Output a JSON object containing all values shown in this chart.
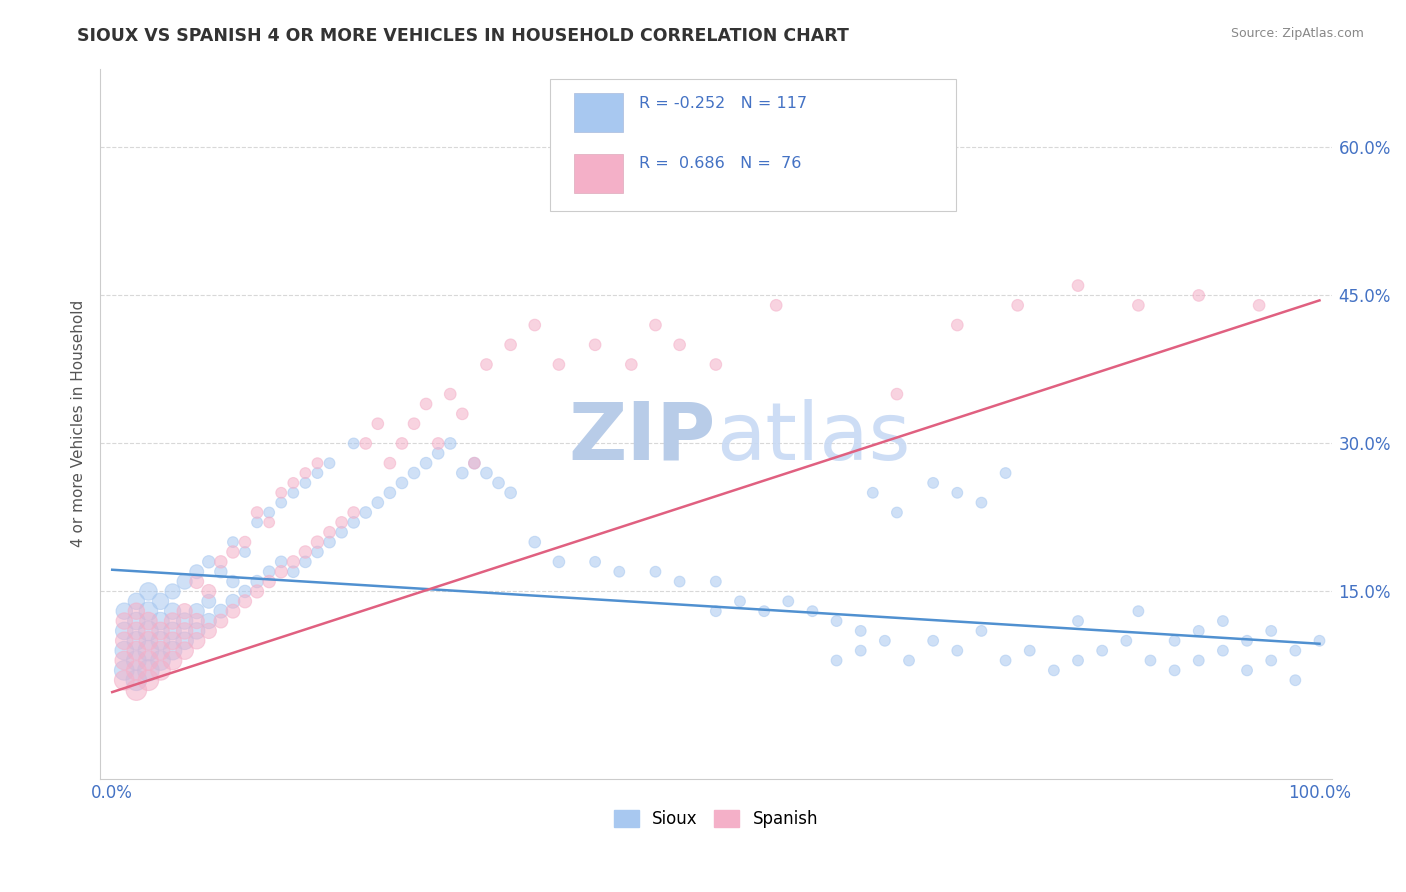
{
  "title": "SIOUX VS SPANISH 4 OR MORE VEHICLES IN HOUSEHOLD CORRELATION CHART",
  "source": "Source: ZipAtlas.com",
  "ylabel": "4 or more Vehicles in Household",
  "ytick_labels": [
    "15.0%",
    "30.0%",
    "45.0%",
    "60.0%"
  ],
  "ytick_values": [
    0.15,
    0.3,
    0.45,
    0.6
  ],
  "xlim": [
    -0.01,
    1.01
  ],
  "ylim": [
    -0.04,
    0.68
  ],
  "legend_bottom_label1": "Sioux",
  "legend_bottom_label2": "Spanish",
  "blue_color": "#a8c8f0",
  "pink_color": "#f4b0c8",
  "blue_line_color": "#5090d0",
  "pink_line_color": "#e06080",
  "watermark_zip": "ZIP",
  "watermark_atlas": "atlas",
  "watermark_color": "#b8cce8",
  "background_color": "#ffffff",
  "grid_color": "#d8d8d8",
  "title_color": "#333333",
  "axis_label_color": "#4472c4",
  "sioux_x": [
    0.01,
    0.01,
    0.01,
    0.01,
    0.02,
    0.02,
    0.02,
    0.02,
    0.02,
    0.03,
    0.03,
    0.03,
    0.03,
    0.03,
    0.04,
    0.04,
    0.04,
    0.04,
    0.05,
    0.05,
    0.05,
    0.05,
    0.06,
    0.06,
    0.06,
    0.07,
    0.07,
    0.07,
    0.08,
    0.08,
    0.08,
    0.09,
    0.09,
    0.1,
    0.1,
    0.1,
    0.11,
    0.11,
    0.12,
    0.12,
    0.13,
    0.13,
    0.14,
    0.14,
    0.15,
    0.15,
    0.16,
    0.16,
    0.17,
    0.17,
    0.18,
    0.18,
    0.19,
    0.2,
    0.2,
    0.21,
    0.22,
    0.23,
    0.24,
    0.25,
    0.26,
    0.27,
    0.28,
    0.29,
    0.3,
    0.31,
    0.32,
    0.33,
    0.35,
    0.37,
    0.4,
    0.42,
    0.45,
    0.47,
    0.5,
    0.5,
    0.52,
    0.54,
    0.56,
    0.58,
    0.6,
    0.62,
    0.64,
    0.66,
    0.68,
    0.7,
    0.72,
    0.74,
    0.76,
    0.78,
    0.8,
    0.82,
    0.84,
    0.86,
    0.88,
    0.9,
    0.92,
    0.94,
    0.96,
    0.98,
    0.6,
    0.62,
    0.63,
    0.65,
    0.68,
    0.7,
    0.72,
    0.74,
    0.8,
    0.85,
    0.88,
    0.9,
    0.92,
    0.94,
    0.96,
    0.98,
    1.0
  ],
  "sioux_y": [
    0.07,
    0.09,
    0.11,
    0.13,
    0.06,
    0.08,
    0.1,
    0.12,
    0.14,
    0.07,
    0.09,
    0.11,
    0.13,
    0.15,
    0.08,
    0.1,
    0.12,
    0.14,
    0.09,
    0.11,
    0.13,
    0.15,
    0.1,
    0.12,
    0.16,
    0.11,
    0.13,
    0.17,
    0.12,
    0.14,
    0.18,
    0.13,
    0.17,
    0.14,
    0.16,
    0.2,
    0.15,
    0.19,
    0.16,
    0.22,
    0.17,
    0.23,
    0.18,
    0.24,
    0.17,
    0.25,
    0.18,
    0.26,
    0.19,
    0.27,
    0.2,
    0.28,
    0.21,
    0.22,
    0.3,
    0.23,
    0.24,
    0.25,
    0.26,
    0.27,
    0.28,
    0.29,
    0.3,
    0.27,
    0.28,
    0.27,
    0.26,
    0.25,
    0.2,
    0.18,
    0.18,
    0.17,
    0.17,
    0.16,
    0.13,
    0.16,
    0.14,
    0.13,
    0.14,
    0.13,
    0.08,
    0.09,
    0.1,
    0.08,
    0.1,
    0.09,
    0.11,
    0.08,
    0.09,
    0.07,
    0.08,
    0.09,
    0.1,
    0.08,
    0.07,
    0.08,
    0.09,
    0.07,
    0.08,
    0.06,
    0.12,
    0.11,
    0.25,
    0.23,
    0.26,
    0.25,
    0.24,
    0.27,
    0.12,
    0.13,
    0.1,
    0.11,
    0.12,
    0.1,
    0.11,
    0.09,
    0.1
  ],
  "sioux_size": [
    200,
    180,
    160,
    140,
    220,
    200,
    180,
    160,
    140,
    240,
    220,
    200,
    180,
    160,
    200,
    180,
    160,
    140,
    180,
    160,
    140,
    120,
    160,
    140,
    120,
    140,
    120,
    100,
    120,
    100,
    80,
    100,
    80,
    100,
    80,
    60,
    80,
    60,
    80,
    60,
    70,
    60,
    70,
    60,
    70,
    60,
    70,
    60,
    70,
    60,
    70,
    60,
    70,
    70,
    60,
    70,
    70,
    70,
    70,
    70,
    70,
    70,
    70,
    70,
    70,
    70,
    70,
    70,
    70,
    70,
    60,
    60,
    60,
    60,
    60,
    60,
    60,
    60,
    60,
    60,
    60,
    60,
    60,
    60,
    60,
    60,
    60,
    60,
    60,
    60,
    60,
    60,
    60,
    60,
    60,
    60,
    60,
    60,
    60,
    60,
    60,
    60,
    60,
    60,
    60,
    60,
    60,
    60,
    60,
    60,
    60,
    60,
    60,
    60,
    60,
    60,
    60
  ],
  "spanish_x": [
    0.01,
    0.01,
    0.01,
    0.01,
    0.02,
    0.02,
    0.02,
    0.02,
    0.02,
    0.03,
    0.03,
    0.03,
    0.03,
    0.04,
    0.04,
    0.04,
    0.05,
    0.05,
    0.05,
    0.06,
    0.06,
    0.06,
    0.07,
    0.07,
    0.07,
    0.08,
    0.08,
    0.09,
    0.09,
    0.1,
    0.1,
    0.11,
    0.11,
    0.12,
    0.12,
    0.13,
    0.13,
    0.14,
    0.14,
    0.15,
    0.15,
    0.16,
    0.16,
    0.17,
    0.17,
    0.18,
    0.19,
    0.2,
    0.21,
    0.22,
    0.23,
    0.24,
    0.25,
    0.26,
    0.27,
    0.28,
    0.29,
    0.3,
    0.31,
    0.33,
    0.35,
    0.37,
    0.4,
    0.43,
    0.45,
    0.47,
    0.5,
    0.55,
    0.6,
    0.65,
    0.7,
    0.75,
    0.8,
    0.85,
    0.9,
    0.95
  ],
  "spanish_y": [
    0.06,
    0.08,
    0.1,
    0.12,
    0.05,
    0.07,
    0.09,
    0.11,
    0.13,
    0.06,
    0.08,
    0.1,
    0.12,
    0.07,
    0.09,
    0.11,
    0.08,
    0.1,
    0.12,
    0.09,
    0.11,
    0.13,
    0.1,
    0.12,
    0.16,
    0.11,
    0.15,
    0.12,
    0.18,
    0.13,
    0.19,
    0.14,
    0.2,
    0.15,
    0.23,
    0.16,
    0.22,
    0.17,
    0.25,
    0.18,
    0.26,
    0.19,
    0.27,
    0.2,
    0.28,
    0.21,
    0.22,
    0.23,
    0.3,
    0.32,
    0.28,
    0.3,
    0.32,
    0.34,
    0.3,
    0.35,
    0.33,
    0.28,
    0.38,
    0.4,
    0.42,
    0.38,
    0.4,
    0.38,
    0.42,
    0.4,
    0.38,
    0.44,
    0.62,
    0.35,
    0.42,
    0.44,
    0.46,
    0.44,
    0.45,
    0.44
  ],
  "spanish_size": [
    200,
    180,
    160,
    140,
    220,
    200,
    180,
    160,
    140,
    220,
    200,
    180,
    160,
    200,
    180,
    160,
    180,
    160,
    140,
    160,
    140,
    120,
    140,
    120,
    100,
    120,
    100,
    100,
    80,
    100,
    80,
    90,
    70,
    90,
    70,
    80,
    60,
    80,
    60,
    80,
    60,
    80,
    60,
    80,
    60,
    70,
    70,
    70,
    70,
    70,
    70,
    70,
    70,
    70,
    70,
    70,
    70,
    70,
    70,
    70,
    70,
    70,
    70,
    70,
    70,
    70,
    70,
    70,
    70,
    70,
    70,
    70,
    70,
    70,
    70,
    70
  ],
  "sioux_trend_x": [
    0.0,
    1.0
  ],
  "sioux_trend_y": [
    0.172,
    0.097
  ],
  "spanish_trend_x": [
    0.0,
    1.0
  ],
  "spanish_trend_y": [
    0.048,
    0.445
  ]
}
